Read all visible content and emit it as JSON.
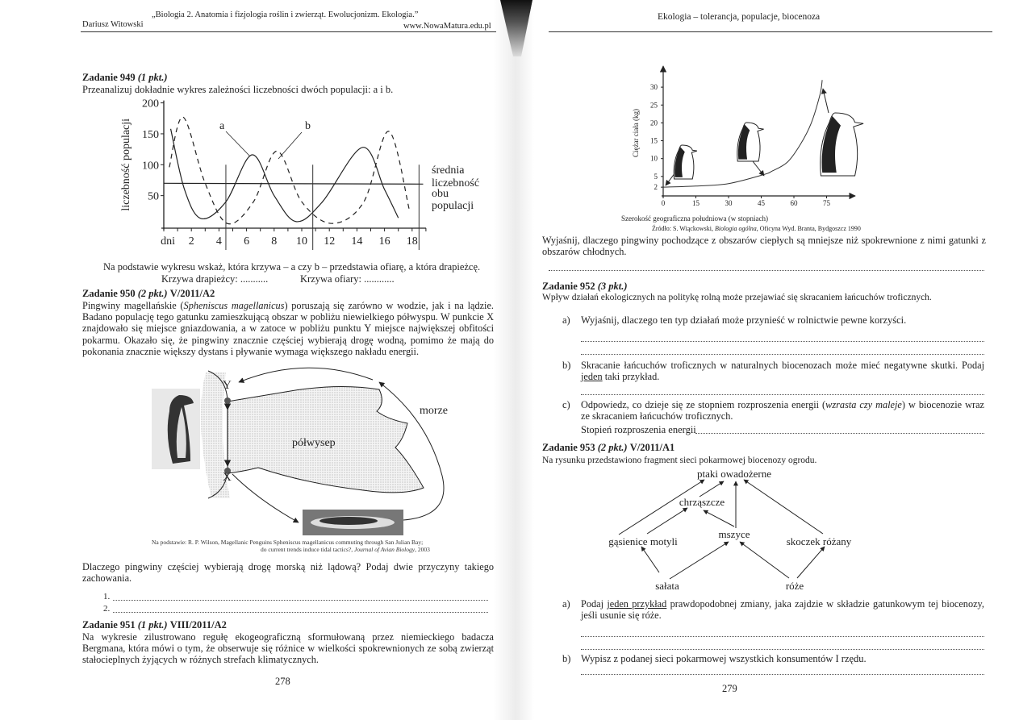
{
  "left_page": {
    "header_title": "„Biologia 2. Anatomia i fizjologia roślin i zwierząt. Ewolucjonizm. Ekologia.”",
    "author": "Dariusz Witowski",
    "website": "www.NowaMatura.edu.pl",
    "task949": {
      "title": "Zadanie 949",
      "points": "(1 pkt.)",
      "intro": "Przeanalizuj dokładnie wykres zależności liczebności dwóch populacji: a i b.",
      "question": "Na podstawie wykresu wskaż, która krzywa – a czy b – przedstawia ofiarę, a która drapieżcę.",
      "predator_label": "Krzywa drapieżcy: ...........",
      "prey_label": "Krzywa ofiary: ............"
    },
    "task950": {
      "title": "Zadanie 950",
      "points": "(2 pkt.)",
      "code": "V/2011/A2",
      "text_before": "Pingwiny magellańskie (",
      "species": "Spheniscus magellanicus",
      "text_after": ") poruszają się zarówno w wodzie, jak i na lądzie. Badano populację tego gatunku zamieszkującą obszar w pobliżu niewielkiego półwyspu. W punkcie X znajdowało się miejsce gniazdowania, a w zatoce w pobliżu punktu Y miejsce największej obfitości pokarmu. Okazało się, że pingwiny znacznie częściej wybierają drogę wodną, pomimo że mają do pokonania znacznie większy dystans i pływanie wymaga większego nakładu energii.",
      "diagram": {
        "point_y": "Y",
        "point_x": "X",
        "sea": "morze",
        "peninsula": "półwysep"
      },
      "source_line1": "Na podstawie: R. P. Wilson, Magellanic Penguins Spheniscus magellanicus commuting through San Julian Bay;",
      "source_line2": "do current trends induce tidal tactics?, ",
      "source_journal": "Journal of Avian Biology",
      "source_year": ", 2003",
      "question": "Dlaczego pingwiny częściej wybierają drogę morską niż lądową? Podaj dwie przyczyny takiego zachowania.",
      "answer1": "1.",
      "answer2": "2."
    },
    "task951": {
      "title": "Zadanie 951",
      "points": "(1 pkt.)",
      "code": "VIII/2011/A2",
      "text": "Na wykresie zilustrowano regułę ekogeograficzną sformułowaną przez niemieckiego badacza Bergmana, która mówi o tym, że obserwuje się różnice w wielkości spokrewnionych ze sobą zwierząt stałocieplnych żyjących w różnych strefach klimatycznych."
    },
    "page_number": "278"
  },
  "right_page": {
    "header_title": "Ekologia – tolerancja, populacje, biocenoza",
    "chart_source_prefix": "Źródło: S. Wiąckowski, ",
    "chart_source_book": "Biologia ogólna",
    "chart_source_suffix": ", Oficyna Wyd. Branta, Bydgoszcz 1990",
    "task951_question": "Wyjaśnij, dlaczego pingwiny pochodzące z obszarów ciepłych są mniejsze niż spokrewnione z nimi gatunki z obszarów chłodnych.",
    "task952": {
      "title": "Zadanie 952",
      "points": "(3 pkt.)",
      "intro": "Wpływ działań ekologicznych na politykę rolną może przejawiać się skracaniem łańcuchów troficznych.",
      "a_marker": "a)",
      "a_text": "Wyjaśnij, dlaczego ten typ działań może przynieść w rolnictwie pewne korzyści.",
      "b_marker": "b)",
      "b_text_before": "Skracanie łańcuchów troficznych w naturalnych biocenozach może mieć negatywne skutki. Podaj ",
      "b_underlined": "jeden",
      "b_text_after": " taki przykład.",
      "c_marker": "c)",
      "c_text_before": "Odpowiedz, co dzieje się ze stopniem rozproszenia energii (",
      "c_italic": "wzrasta czy maleje",
      "c_text_after": ") w biocenozie wraz ze skracaniem łańcuchów troficznych.",
      "c_answer_label": "Stopień rozproszenia energii"
    },
    "task953": {
      "title": "Zadanie 953",
      "points": "(2 pkt.)",
      "code": "V/2011/A1",
      "intro": "Na rysunku przedstawiono fragment sieci pokarmowej biocenozy ogrodu.",
      "food_web": {
        "ptaki": "ptaki owadożerne",
        "chrzaszcze": "chrząszcze",
        "gasienice": "gąsienice motyli",
        "mszyce": "mszyce",
        "skoczek": "skoczek różany",
        "salata": "sałata",
        "roze": "róże"
      },
      "a_marker": "a)",
      "a_text_before": "Podaj ",
      "a_underlined": "jeden przykład",
      "a_text_after": " prawdopodobnej zmiany, jaka zajdzie w składzie gatunkowym tej biocenozy, jeśli usunie się róże.",
      "b_marker": "b)",
      "b_text": "Wypisz z podanej sieci pokarmowej wszystkich konsumentów I rzędu."
    },
    "page_number": "279"
  },
  "chart_data": [
    {
      "type": "line",
      "ylabel": "liczebność populacji",
      "xlabel": "dni",
      "x_ticks": [
        "2",
        "4",
        "6",
        "8",
        "10",
        "12",
        "14",
        "16",
        "18"
      ],
      "y_ticks": [
        "50",
        "100",
        "150",
        "200"
      ],
      "xlim": [
        0,
        19
      ],
      "ylim": [
        0,
        200
      ],
      "mean_line_value": 70,
      "mean_line_label": "średnia liczebność obu populacji",
      "vertical_markers": [
        4.5,
        10.8,
        18.5
      ],
      "series": [
        {
          "name": "a",
          "style": "solid",
          "x": [
            0.5,
            1.5,
            2.7,
            4.5,
            6.4,
            8.0,
            9.6,
            11.5,
            14.4,
            16.0,
            17.0
          ],
          "y": [
            158,
            60,
            13,
            40,
            116,
            50,
            8,
            40,
            128,
            60,
            14
          ]
        },
        {
          "name": "b",
          "style": "dashed",
          "x": [
            0.4,
            1.4,
            3.0,
            4.6,
            6.5,
            8.2,
            10.0,
            12.2,
            14.5,
            16.3,
            17.8
          ],
          "y": [
            96,
            177,
            70,
            5,
            40,
            122,
            40,
            5,
            40,
            154,
            27
          ]
        }
      ]
    },
    {
      "type": "line",
      "ylabel": "Ciężar ciała (kg)",
      "xlabel": "Szerokość geograficzna południowa (w stopniach)",
      "x_ticks": [
        "0",
        "15",
        "30",
        "45",
        "60",
        "75"
      ],
      "y_ticks": [
        "2",
        "5",
        "10",
        "15",
        "20",
        "25",
        "30"
      ],
      "xlim": [
        0,
        85
      ],
      "ylim": [
        0,
        33
      ],
      "series": [
        {
          "x": [
            0,
            15,
            30,
            46,
            50,
            57,
            63,
            68,
            72,
            73
          ],
          "y": [
            2,
            2.3,
            3,
            5.5,
            6.5,
            9,
            14,
            20,
            28,
            32
          ]
        }
      ]
    }
  ]
}
